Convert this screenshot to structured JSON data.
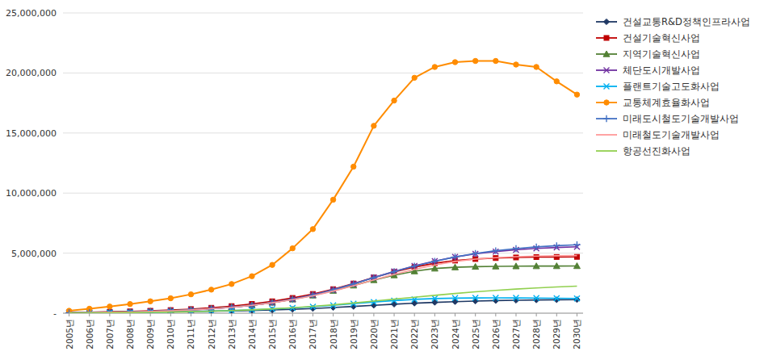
{
  "chart_data": {
    "type": "line",
    "x": [
      2005,
      2006,
      2007,
      2008,
      2009,
      2010,
      2011,
      2012,
      2013,
      2014,
      2015,
      2016,
      2017,
      2018,
      2019,
      2020,
      2021,
      2022,
      2023,
      2024,
      2025,
      2026,
      2027,
      2028,
      2029,
      2030
    ],
    "xlim": [
      2004.7,
      2030.3
    ],
    "xticks": [
      {
        "value": 2005,
        "label": "2005년"
      },
      {
        "value": 2006,
        "label": "2006년"
      },
      {
        "value": 2007,
        "label": "2007년"
      },
      {
        "value": 2008,
        "label": "2008년"
      },
      {
        "value": 2009,
        "label": "2009년"
      },
      {
        "value": 2010,
        "label": "2010년"
      },
      {
        "value": 2011,
        "label": "2011년"
      },
      {
        "value": 2012,
        "label": "2012년"
      },
      {
        "value": 2013,
        "label": "2013년"
      },
      {
        "value": 2014,
        "label": "2014년"
      },
      {
        "value": 2015,
        "label": "2015년"
      },
      {
        "value": 2016,
        "label": "2016년"
      },
      {
        "value": 2017,
        "label": "2017년"
      },
      {
        "value": 2018,
        "label": "2018년"
      },
      {
        "value": 2019,
        "label": "2019년"
      },
      {
        "value": 2020,
        "label": "2020년"
      },
      {
        "value": 2021,
        "label": "2021년"
      },
      {
        "value": 2022,
        "label": "2022년"
      },
      {
        "value": 2023,
        "label": "2023년"
      },
      {
        "value": 2024,
        "label": "2024년"
      },
      {
        "value": 2025,
        "label": "2025년"
      },
      {
        "value": 2026,
        "label": "2026년"
      },
      {
        "value": 2027,
        "label": "2027년"
      },
      {
        "value": 2028,
        "label": "2028년"
      },
      {
        "value": 2029,
        "label": "2029년"
      },
      {
        "value": 2030,
        "label": "2030년"
      }
    ],
    "ylim": [
      0,
      25000000
    ],
    "yticks": [
      {
        "value": 0,
        "label": "-"
      },
      {
        "value": 5000000,
        "label": "5,000,000"
      },
      {
        "value": 10000000,
        "label": "10,000,000"
      },
      {
        "value": 15000000,
        "label": "15,000,000"
      },
      {
        "value": 20000000,
        "label": "20,000,000"
      },
      {
        "value": 25000000,
        "label": "25,000,000"
      }
    ],
    "grid": true,
    "legend": "right",
    "series": [
      {
        "name": "건설교통R&D정책인프라사업",
        "color": "#1F3864",
        "marker": "diamond",
        "values": [
          50000,
          75000,
          95000,
          110000,
          120000,
          130000,
          150000,
          170000,
          195000,
          225000,
          265000,
          320000,
          390000,
          470000,
          560000,
          660000,
          750000,
          830000,
          900000,
          960000,
          1010000,
          1050000,
          1080000,
          1100000,
          1120000,
          1130000
        ]
      },
      {
        "name": "건설기술혁신사업",
        "color": "#C00000",
        "marker": "square",
        "values": [
          50000,
          80000,
          110000,
          150000,
          200000,
          260000,
          340000,
          450000,
          590000,
          770000,
          990000,
          1270000,
          1600000,
          2000000,
          2470000,
          2970000,
          3430000,
          3840000,
          4160000,
          4380000,
          4510000,
          4590000,
          4640000,
          4670000,
          4680000,
          4690000
        ]
      },
      {
        "name": "지역기술혁신사업",
        "color": "#538135",
        "marker": "triangle",
        "values": [
          40000,
          60000,
          85000,
          115000,
          155000,
          210000,
          280000,
          375000,
          500000,
          665000,
          880000,
          1150000,
          1480000,
          1870000,
          2310000,
          2760000,
          3160000,
          3490000,
          3720000,
          3820000,
          3870000,
          3895000,
          3910000,
          3920000,
          3925000,
          3930000
        ]
      },
      {
        "name": "체단도시개발사업",
        "color": "#7030A0",
        "marker": "x",
        "values": [
          30000,
          50000,
          75000,
          105000,
          145000,
          200000,
          270000,
          365000,
          490000,
          660000,
          880000,
          1160000,
          1510000,
          1940000,
          2440000,
          2970000,
          3480000,
          3940000,
          4340000,
          4680000,
          4940000,
          5130000,
          5280000,
          5390000,
          5470000,
          5530000
        ]
      },
      {
        "name": "플랜트기술고도화사업",
        "color": "#00B0F0",
        "marker": "x",
        "values": [
          20000,
          30000,
          40000,
          55000,
          75000,
          100000,
          130000,
          170000,
          215000,
          275000,
          345000,
          435000,
          540000,
          660000,
          795000,
          930000,
          1050000,
          1150000,
          1220000,
          1255000,
          1270000,
          1275000,
          1270000,
          1260000,
          1245000,
          1230000
        ]
      },
      {
        "name": "교통체계효율화사업",
        "color": "#FF8C00",
        "marker": "circle",
        "values": [
          200000,
          370000,
          550000,
          760000,
          990000,
          1240000,
          1570000,
          1960000,
          2430000,
          3080000,
          4020000,
          5400000,
          7000000,
          9450000,
          12200000,
          15600000,
          17700000,
          19600000,
          20500000,
          20900000,
          21000000,
          21000000,
          20700000,
          20500000,
          19300000,
          18200000
        ]
      },
      {
        "name": "미래도시철도기술개발사업",
        "color": "#4472C4",
        "marker": "plus",
        "values": [
          30000,
          50000,
          75000,
          105000,
          145000,
          200000,
          270000,
          365000,
          490000,
          660000,
          880000,
          1160000,
          1510000,
          1940000,
          2440000,
          2960000,
          3460000,
          3920000,
          4320000,
          4680000,
          4970000,
          5200000,
          5380000,
          5520000,
          5620000,
          5700000
        ]
      },
      {
        "name": "미래철도기술개발사업",
        "color": "#FF9999",
        "marker": "none",
        "values": [
          30000,
          50000,
          75000,
          105000,
          145000,
          200000,
          270000,
          365000,
          490000,
          655000,
          865000,
          1130000,
          1450000,
          1840000,
          2290000,
          2770000,
          3230000,
          3650000,
          4020000,
          4310000,
          4500000,
          4620000,
          4700000,
          4750000,
          4780000,
          4800000
        ]
      },
      {
        "name": "항공선진화사업",
        "color": "#92D050",
        "marker": "none",
        "values": [
          15000,
          25000,
          35000,
          50000,
          70000,
          95000,
          125000,
          165000,
          215000,
          280000,
          360000,
          455000,
          570000,
          700000,
          850000,
          1010000,
          1170000,
          1330000,
          1490000,
          1640000,
          1780000,
          1900000,
          2010000,
          2100000,
          2180000,
          2250000
        ]
      }
    ]
  }
}
